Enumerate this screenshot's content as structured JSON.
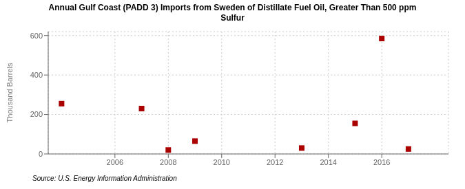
{
  "chart_data": {
    "type": "scatter",
    "title": "Annual Gulf Coast (PADD 3) Imports from Sweden of Distillate Fuel Oil, Greater Than 500 ppm\nSulfur",
    "ylabel": "Thousand Barrels",
    "annotations": [
      "Source: U.S. Energy Information Administration"
    ],
    "x": [
      2004,
      2007,
      2008,
      2009,
      2013,
      2015,
      2016,
      2017
    ],
    "values": [
      255,
      230,
      20,
      65,
      30,
      155,
      585,
      25
    ],
    "color": "#aa0000",
    "marker": "square",
    "xlim": [
      2003.5,
      2018.5
    ],
    "xticks": [
      2006,
      2008,
      2010,
      2012,
      2014,
      2016
    ],
    "ylim": [
      0,
      620
    ],
    "yticks": [
      0,
      200,
      400,
      600
    ],
    "grid": true
  }
}
